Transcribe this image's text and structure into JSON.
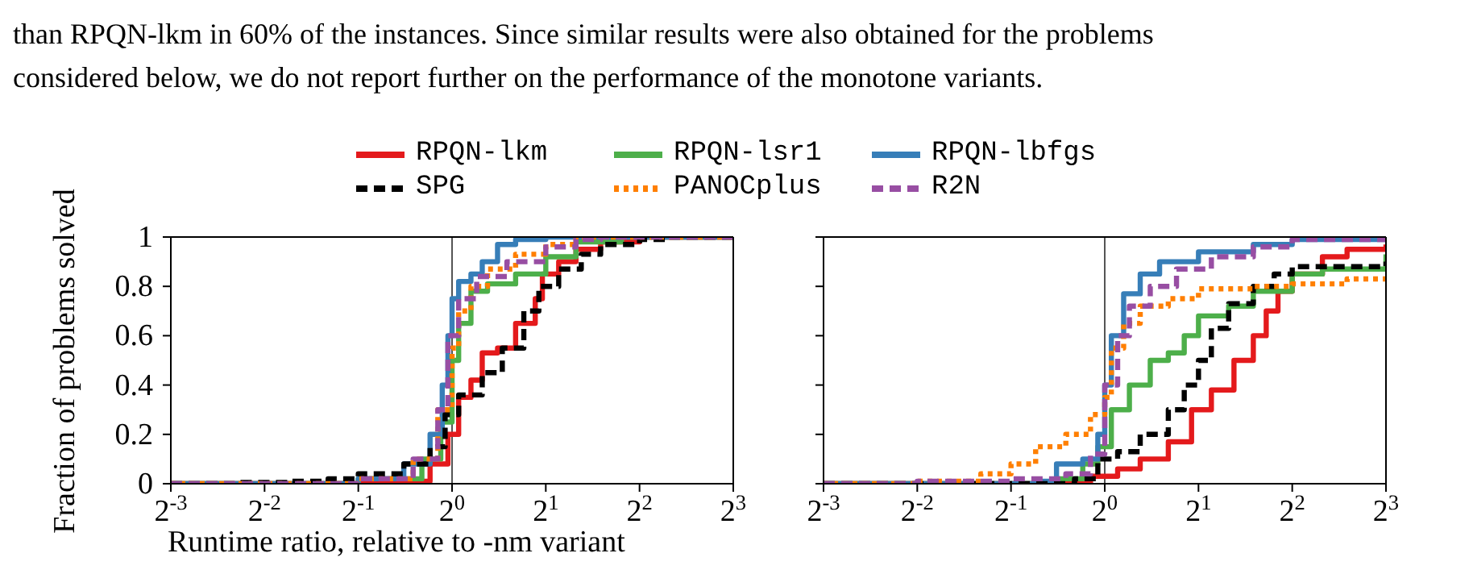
{
  "chart_data": [
    {
      "type": "step",
      "annotations": [
        "than RPQN-lkm in 60% of the instances. Since similar results were also obtained for the problems",
        "considered below, we do not report further on the performance of the monotone variants."
      ],
      "ylabel": "Fraction of problems solved",
      "xlabel": "Runtime ratio, relative to -nm variant",
      "log": "x",
      "xlim": [
        0.125,
        8
      ],
      "xticks": [
        {
          "value": 0.125,
          "label": "2$^{-3}$"
        },
        {
          "value": 0.25,
          "label": "2$^{-2}$"
        },
        {
          "value": 0.5,
          "label": "2$^{-1}$"
        },
        {
          "value": 1,
          "label": "2$^{0}$"
        },
        {
          "value": 2,
          "label": "2$^{1}$"
        },
        {
          "value": 4,
          "label": "2$^{2}$"
        },
        {
          "value": 8,
          "label": "2$^{3}$"
        }
      ],
      "ylim": [
        0,
        1
      ],
      "yticks": [
        0,
        0.2,
        0.4,
        0.6,
        0.8,
        1
      ],
      "grid": false,
      "legend": "top",
      "ref_lines": [
        {
          "axis": "x",
          "value": 1,
          "color": "#555555"
        }
      ],
      "series": [
        {
          "name": "RPQN-lkm",
          "color": "#e41a1c",
          "line_style": "solid",
          "x": [
            0.125,
            0.6,
            0.85,
            0.97,
            1.05,
            1.15,
            1.25,
            1.4,
            1.6,
            1.85,
            1.95,
            2.2,
            2.5,
            3,
            4,
            8
          ],
          "values": [
            0,
            0.01,
            0.08,
            0.2,
            0.35,
            0.42,
            0.53,
            0.55,
            0.65,
            0.75,
            0.85,
            0.9,
            0.95,
            0.98,
            1,
            1
          ]
        },
        {
          "name": "RPQN-lsr1",
          "color": "#4daf4a",
          "line_style": "solid",
          "x": [
            0.125,
            0.5,
            0.8,
            0.92,
            1.0,
            1.05,
            1.15,
            1.3,
            1.6,
            2,
            2.5,
            3.5,
            8
          ],
          "values": [
            0,
            0.02,
            0.1,
            0.25,
            0.5,
            0.65,
            0.78,
            0.81,
            0.85,
            0.92,
            0.98,
            1,
            1
          ]
        },
        {
          "name": "RPQN-lbfgs",
          "color": "#377eb8",
          "line_style": "solid",
          "x": [
            0.125,
            0.5,
            0.7,
            0.85,
            0.93,
            0.97,
            1.0,
            1.05,
            1.15,
            1.25,
            1.4,
            1.6,
            2,
            8
          ],
          "values": [
            0,
            0.02,
            0.08,
            0.2,
            0.4,
            0.6,
            0.75,
            0.82,
            0.85,
            0.9,
            0.97,
            0.99,
            1,
            1
          ]
        },
        {
          "name": "SPG",
          "color": "#000000",
          "line_style": "dashed",
          "x": [
            0.125,
            0.2,
            0.3,
            0.4,
            0.5,
            0.7,
            0.85,
            0.95,
            1.05,
            1.25,
            1.45,
            1.7,
            1.9,
            2.2,
            2.6,
            3,
            4,
            5,
            8
          ],
          "values": [
            0,
            0.005,
            0.01,
            0.02,
            0.04,
            0.08,
            0.15,
            0.28,
            0.36,
            0.45,
            0.55,
            0.7,
            0.8,
            0.87,
            0.93,
            0.97,
            0.99,
            1,
            1
          ]
        },
        {
          "name": "PANOCplus",
          "color": "#ff7f00",
          "line_style": "dotted",
          "x": [
            0.125,
            0.5,
            0.75,
            0.9,
            1.0,
            1.05,
            1.15,
            1.3,
            1.6,
            2,
            2.5,
            8
          ],
          "values": [
            0,
            0.02,
            0.1,
            0.3,
            0.55,
            0.7,
            0.8,
            0.87,
            0.93,
            0.97,
            1,
            1
          ]
        },
        {
          "name": "R2N",
          "color": "#984ea3",
          "line_style": "dashed",
          "x": [
            0.125,
            0.5,
            0.75,
            0.9,
            0.97,
            1.05,
            1.2,
            1.5,
            2,
            2.5,
            3,
            8
          ],
          "values": [
            0,
            0.02,
            0.1,
            0.3,
            0.6,
            0.75,
            0.84,
            0.9,
            0.96,
            0.99,
            1,
            1
          ]
        }
      ]
    },
    {
      "type": "step",
      "log": "x",
      "xlim": [
        0.125,
        8
      ],
      "xticks": [
        {
          "value": 0.125,
          "label": "2$^{-3}$"
        },
        {
          "value": 0.25,
          "label": "2$^{-2}$"
        },
        {
          "value": 0.5,
          "label": "2$^{-1}$"
        },
        {
          "value": 1,
          "label": "2$^{0}$"
        },
        {
          "value": 2,
          "label": "2$^{1}$"
        },
        {
          "value": 4,
          "label": "2$^{2}$"
        },
        {
          "value": 8,
          "label": "2$^{3}$"
        }
      ],
      "ylim": [
        0,
        1
      ],
      "yticks": [
        0,
        0.2,
        0.4,
        0.6,
        0.8,
        1
      ],
      "tick_labels": "x",
      "grid": false,
      "ref_lines": [
        {
          "axis": "x",
          "value": 1,
          "color": "#555555"
        }
      ],
      "series": [
        {
          "color": "#e41a1c",
          "line_style": "solid",
          "x": [
            0.125,
            0.6,
            0.9,
            1.1,
            1.3,
            1.6,
            1.9,
            2.2,
            2.6,
            3,
            3.3,
            3.6,
            4,
            5,
            6,
            8
          ],
          "values": [
            0,
            0,
            0.03,
            0.06,
            0.1,
            0.17,
            0.3,
            0.38,
            0.5,
            0.6,
            0.7,
            0.78,
            0.85,
            0.92,
            0.95,
            0.97
          ]
        },
        {
          "color": "#4daf4a",
          "line_style": "solid",
          "x": [
            0.125,
            0.5,
            0.7,
            0.85,
            0.95,
            1.05,
            1.2,
            1.4,
            1.6,
            1.8,
            2,
            2.5,
            3,
            4,
            5,
            8
          ],
          "values": [
            0,
            0,
            0.02,
            0.08,
            0.15,
            0.3,
            0.4,
            0.5,
            0.53,
            0.6,
            0.68,
            0.72,
            0.78,
            0.85,
            0.87,
            0.93
          ]
        },
        {
          "color": "#377eb8",
          "line_style": "solid",
          "x": [
            0.125,
            0.6,
            0.7,
            0.85,
            0.95,
            1.0,
            1.05,
            1.15,
            1.3,
            1.5,
            2,
            3,
            4,
            8
          ],
          "values": [
            0,
            0.01,
            0.08,
            0.1,
            0.2,
            0.4,
            0.6,
            0.77,
            0.85,
            0.9,
            0.94,
            0.97,
            0.99,
            1
          ]
        },
        {
          "color": "#000000",
          "line_style": "dashed",
          "x": [
            0.125,
            0.5,
            0.8,
            0.95,
            1.1,
            1.3,
            1.6,
            1.8,
            2,
            2.2,
            2.5,
            3,
            3.5,
            4,
            8
          ],
          "values": [
            0,
            0,
            0.02,
            0.1,
            0.13,
            0.2,
            0.3,
            0.4,
            0.5,
            0.63,
            0.73,
            0.8,
            0.85,
            0.88,
            0.9
          ]
        },
        {
          "color": "#ff7f00",
          "line_style": "dotted",
          "x": [
            0.125,
            0.25,
            0.4,
            0.5,
            0.6,
            0.75,
            0.9,
            1.0,
            1.05,
            1.15,
            1.3,
            1.6,
            2,
            3,
            4,
            6,
            8
          ],
          "values": [
            0,
            0.01,
            0.04,
            0.08,
            0.15,
            0.2,
            0.28,
            0.35,
            0.55,
            0.65,
            0.72,
            0.75,
            0.79,
            0.8,
            0.81,
            0.83,
            0.84
          ]
        },
        {
          "color": "#984ea3",
          "line_style": "dashed",
          "x": [
            0.125,
            0.25,
            0.5,
            0.75,
            0.9,
            1.0,
            1.1,
            1.2,
            1.4,
            1.7,
            2.2,
            3,
            4,
            8
          ],
          "values": [
            0,
            0.01,
            0.02,
            0.04,
            0.12,
            0.4,
            0.6,
            0.72,
            0.8,
            0.87,
            0.92,
            0.96,
            0.99,
            1
          ]
        }
      ]
    }
  ]
}
